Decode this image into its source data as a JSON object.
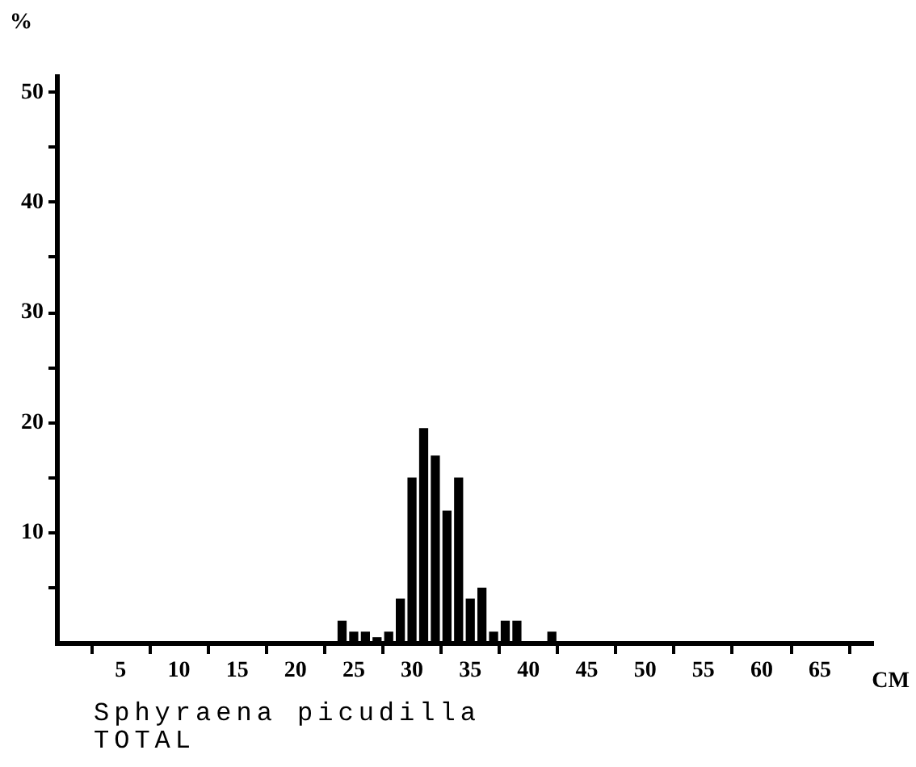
{
  "chart_data": {
    "type": "histogram",
    "title": "Sphyraena picudilla",
    "subtitle": "TOTAL",
    "xlabel": "CM",
    "ylabel": "%",
    "bins": [
      23.5,
      24.5,
      25.5,
      26.5,
      27.5,
      28.5,
      29.5,
      30.5,
      31.5,
      32.5,
      33.5,
      34.5,
      35.5,
      36.5,
      37.5,
      38.5,
      39.5,
      40.5,
      41.5,
      42.5
    ],
    "values": [
      2,
      1,
      1,
      0.5,
      1,
      4,
      15,
      19.5,
      17,
      12,
      15,
      4,
      5,
      1,
      2,
      2,
      0,
      0,
      1
    ],
    "color": "#000000",
    "xlim": [
      -0.5,
      69.5
    ],
    "ylim": [
      0,
      51.5
    ],
    "xticks": [
      5,
      10,
      15,
      20,
      25,
      30,
      35,
      40,
      45,
      50,
      55,
      60,
      65
    ],
    "yticks": [
      {
        "value": 5,
        "label": null
      },
      10,
      {
        "value": 15,
        "label": null
      },
      20,
      {
        "value": 25,
        "label": null
      },
      30,
      {
        "value": 35,
        "label": null
      },
      40,
      {
        "value": 45,
        "label": null
      },
      50
    ],
    "grid": false,
    "legend": false
  }
}
